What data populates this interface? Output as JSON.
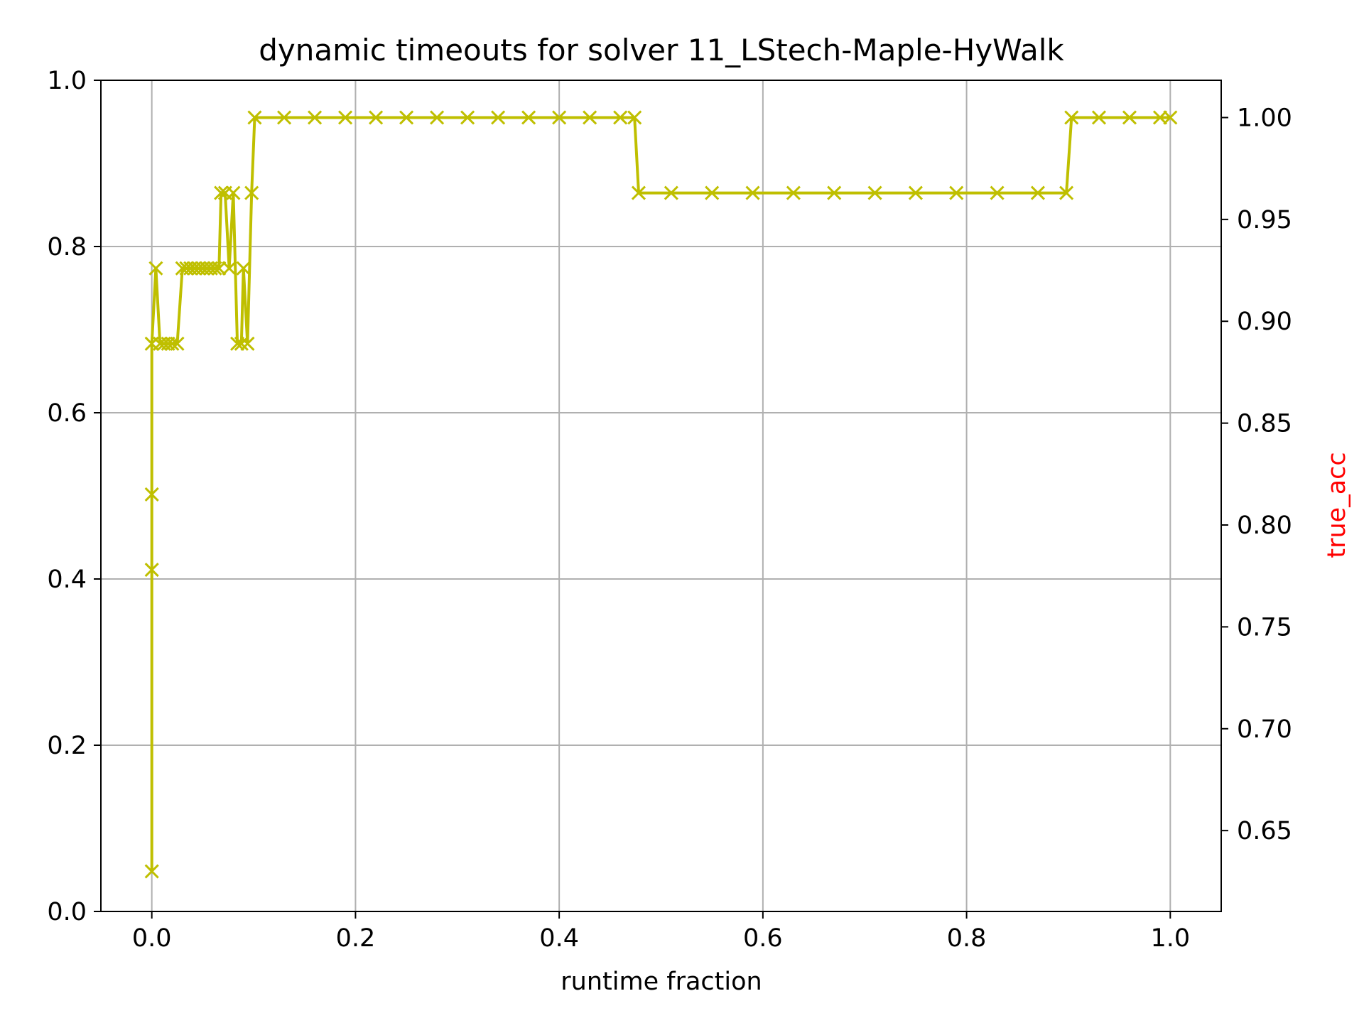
{
  "chart_data": {
    "type": "line",
    "title": "dynamic timeouts for solver 11_LStech-Maple-HyWalk",
    "xlabel": "runtime fraction",
    "ylabel": "",
    "y2label": "true_acc",
    "xlim": [
      -0.05,
      1.05
    ],
    "ylim": [
      0.0,
      1.0
    ],
    "y2lim": [
      0.6103,
      1.0183
    ],
    "x_ticks": [
      "0.0",
      "0.2",
      "0.4",
      "0.6",
      "0.8",
      "1.0"
    ],
    "y_ticks": [
      "0.0",
      "0.2",
      "0.4",
      "0.6",
      "0.8",
      "1.0"
    ],
    "y2_ticks": [
      "0.65",
      "0.70",
      "0.75",
      "0.80",
      "0.85",
      "0.90",
      "0.95",
      "1.00"
    ],
    "grid": true,
    "colors": {
      "series": "#bfbf00",
      "y2label": "#ff0000",
      "grid": "#b0b0b0"
    },
    "marker": "x",
    "series": [
      {
        "axis": "y2",
        "points": [
          [
            0.0,
            0.63
          ],
          [
            0.0,
            0.778
          ],
          [
            0.0,
            0.815
          ],
          [
            0.0,
            0.889
          ],
          [
            0.004,
            0.926
          ],
          [
            0.008,
            0.889
          ],
          [
            0.012,
            0.889
          ],
          [
            0.016,
            0.889
          ],
          [
            0.02,
            0.889
          ],
          [
            0.025,
            0.889
          ],
          [
            0.03,
            0.926
          ],
          [
            0.034,
            0.926
          ],
          [
            0.038,
            0.926
          ],
          [
            0.042,
            0.926
          ],
          [
            0.046,
            0.926
          ],
          [
            0.05,
            0.926
          ],
          [
            0.054,
            0.926
          ],
          [
            0.058,
            0.926
          ],
          [
            0.062,
            0.926
          ],
          [
            0.066,
            0.926
          ],
          [
            0.068,
            0.963
          ],
          [
            0.072,
            0.963
          ],
          [
            0.076,
            0.926
          ],
          [
            0.08,
            0.963
          ],
          [
            0.084,
            0.889
          ],
          [
            0.088,
            0.889
          ],
          [
            0.09,
            0.926
          ],
          [
            0.094,
            0.889
          ],
          [
            0.098,
            0.963
          ],
          [
            0.101,
            1.0
          ],
          [
            0.13,
            1.0
          ],
          [
            0.16,
            1.0
          ],
          [
            0.19,
            1.0
          ],
          [
            0.22,
            1.0
          ],
          [
            0.25,
            1.0
          ],
          [
            0.28,
            1.0
          ],
          [
            0.31,
            1.0
          ],
          [
            0.34,
            1.0
          ],
          [
            0.37,
            1.0
          ],
          [
            0.4,
            1.0
          ],
          [
            0.43,
            1.0
          ],
          [
            0.46,
            1.0
          ],
          [
            0.474,
            1.0
          ],
          [
            0.478,
            0.963
          ],
          [
            0.51,
            0.963
          ],
          [
            0.55,
            0.963
          ],
          [
            0.59,
            0.963
          ],
          [
            0.63,
            0.963
          ],
          [
            0.67,
            0.963
          ],
          [
            0.71,
            0.963
          ],
          [
            0.75,
            0.963
          ],
          [
            0.79,
            0.963
          ],
          [
            0.83,
            0.963
          ],
          [
            0.87,
            0.963
          ],
          [
            0.898,
            0.963
          ],
          [
            0.903,
            1.0
          ],
          [
            0.93,
            1.0
          ],
          [
            0.96,
            1.0
          ],
          [
            0.99,
            1.0
          ],
          [
            1.0,
            1.0
          ]
        ]
      }
    ]
  }
}
